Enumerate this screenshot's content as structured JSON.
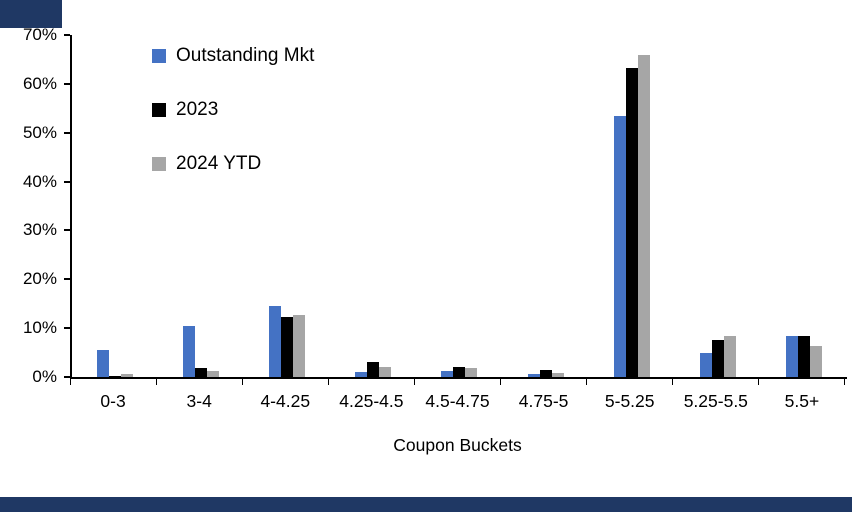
{
  "decor": {
    "band_color": "#1F3864",
    "axis_color": "#000000",
    "background_color": "#FFFFFF"
  },
  "chart_data": {
    "type": "bar",
    "title": "",
    "xlabel": "Coupon Buckets",
    "ylabel": "",
    "ylim": [
      0,
      70
    ],
    "ytick_step": 10,
    "ytick_suffix": "%",
    "grid": false,
    "legend_position": "top-left-inside",
    "categories": [
      "0-3",
      "3-4",
      "4-4.25",
      "4.25-4.5",
      "4.5-4.75",
      "4.75-5",
      "5-5.25",
      "5.25-5.5",
      "5.5+"
    ],
    "series": [
      {
        "name": "Outstanding Mkt",
        "color": "#4472C4",
        "values": [
          5.5,
          10.5,
          14.5,
          1.0,
          1.3,
          0.6,
          53.5,
          4.9,
          8.3
        ]
      },
      {
        "name": "2023",
        "color": "#000000",
        "values": [
          0.3,
          1.8,
          12.3,
          3.0,
          2.0,
          1.5,
          63.3,
          7.5,
          8.3
        ]
      },
      {
        "name": "2024 YTD",
        "color": "#A6A6A6",
        "values": [
          0.6,
          1.3,
          12.6,
          2.1,
          1.9,
          0.9,
          66.0,
          8.3,
          6.3
        ]
      }
    ]
  }
}
